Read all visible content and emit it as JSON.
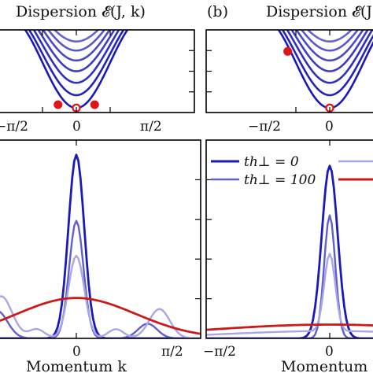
{
  "figure": {
    "panel_a_title": "Dispersion 𝓔(J, k)",
    "panel_b_letter": "(b)",
    "panel_b_title": "Dispersion 𝓔(J",
    "xtick_labels_top_left": [
      "−π/2",
      "0",
      "π/2"
    ],
    "xtick_labels_top_right": [
      "−π/2",
      "0"
    ],
    "xtick_labels_bottom_left": [
      "0",
      "π/2"
    ],
    "xtick_labels_bottom_right": [
      "−π/2",
      "0"
    ],
    "xlabel_left": "Momentum k",
    "xlabel_right": "Momentum k",
    "legend": [
      {
        "label": "th⊥ = 0",
        "color": "#1a1ab8"
      },
      {
        "label": "th⊥ = 100",
        "color": "#5f5fd0"
      },
      {
        "label": "",
        "color": "#a7a7e6"
      },
      {
        "label": "",
        "color": "#cc1a1a"
      }
    ]
  },
  "chart_data": [
    {
      "type": "line",
      "panel": "top-left",
      "title": "Dispersion 𝓔(J, k)",
      "xlabel": "",
      "ylabel": "",
      "xlim": [
        -2.3,
        2.3
      ],
      "ylim": [
        0,
        1
      ],
      "xticks": [
        -1.5708,
        0,
        1.5708
      ],
      "series": [
        {
          "a": 0.55,
          "offset": 0.055,
          "color": "#1a1ab8"
        },
        {
          "a": 0.5,
          "offset": 0.21,
          "color": "#2323bc"
        },
        {
          "a": 0.46,
          "offset": 0.36,
          "color": "#3030c0"
        },
        {
          "a": 0.42,
          "offset": 0.5,
          "color": "#3d3dc4"
        },
        {
          "a": 0.38,
          "offset": 0.63,
          "color": "#4a4ac8"
        },
        {
          "a": 0.34,
          "offset": 0.75,
          "color": "#5858cc"
        },
        {
          "a": 0.3,
          "offset": 0.86,
          "color": "#6565d0"
        }
      ],
      "markers": [
        {
          "x": -0.85,
          "y": 0.095,
          "style": "filled",
          "color": "#e01515"
        },
        {
          "x": 0,
          "y": 0.055,
          "style": "open",
          "color": "#e01515"
        },
        {
          "x": 0.85,
          "y": 0.095,
          "style": "filled",
          "color": "#e01515"
        }
      ]
    },
    {
      "type": "line",
      "panel": "top-right",
      "title": "Dispersion 𝓔(J",
      "xlim": [
        -2.3,
        2.3
      ],
      "ylim": [
        0,
        1
      ],
      "xticks": [
        -1.5708,
        0
      ],
      "series": [
        {
          "a": 0.55,
          "offset": 0.055,
          "color": "#1a1ab8"
        },
        {
          "a": 0.5,
          "offset": 0.21,
          "color": "#2323bc"
        },
        {
          "a": 0.46,
          "offset": 0.36,
          "color": "#3030c0"
        },
        {
          "a": 0.42,
          "offset": 0.5,
          "color": "#3d3dc4"
        },
        {
          "a": 0.38,
          "offset": 0.63,
          "color": "#4a4ac8"
        },
        {
          "a": 0.34,
          "offset": 0.75,
          "color": "#5858cc"
        },
        {
          "a": 0.3,
          "offset": 0.86,
          "color": "#6565d0"
        }
      ],
      "markers": [
        {
          "x": -1.95,
          "y": 0.74,
          "style": "filled",
          "color": "#e01515"
        },
        {
          "x": 0,
          "y": 0.055,
          "style": "open",
          "color": "#e01515"
        }
      ]
    },
    {
      "type": "line",
      "panel": "bottom-left",
      "xlabel": "Momentum k",
      "xlim": [
        -1.6,
        1.6
      ],
      "ylim": [
        0,
        1.08
      ],
      "xticks": [
        0,
        1.5708
      ],
      "series": [
        {
          "name": "th⊥ = 0",
          "color": "#1a1ab8",
          "width": 2.8,
          "components": [
            [
              0,
              0.1,
              1.0
            ]
          ]
        },
        {
          "name": "th⊥ = 100",
          "color": "#5f5fd0",
          "width": 2.4,
          "components": [
            [
              0,
              0.09,
              0.64
            ],
            [
              -1.0,
              0.13,
              0.15
            ],
            [
              0.9,
              0.12,
              0.08
            ]
          ]
        },
        {
          "name": "",
          "color": "#a7a7e6",
          "width": 2.4,
          "components": [
            [
              0,
              0.1,
              0.45
            ],
            [
              -0.95,
              0.14,
              0.23
            ],
            [
              1.05,
              0.13,
              0.16
            ],
            [
              -0.5,
              0.1,
              0.05
            ],
            [
              0.5,
              0.1,
              0.05
            ]
          ]
        },
        {
          "name": "",
          "color": "#cc1a1a",
          "width": 2.8,
          "components": [
            [
              0,
              0.75,
              0.22
            ]
          ]
        }
      ]
    },
    {
      "type": "line",
      "panel": "bottom-right",
      "xlabel": "Momentum k",
      "xlim": [
        -1.6,
        1.6
      ],
      "ylim": [
        0,
        1.08
      ],
      "xticks": [
        -1.5708,
        0
      ],
      "series": [
        {
          "name": "th⊥ = 0",
          "color": "#1a1ab8",
          "width": 2.8,
          "components": [
            [
              0,
              0.1,
              0.94
            ]
          ]
        },
        {
          "name": "th⊥ = 100",
          "color": "#5f5fd0",
          "width": 2.4,
          "components": [
            [
              0,
              0.07,
              0.67
            ]
          ]
        },
        {
          "name": "",
          "color": "#a7a7e6",
          "width": 2.4,
          "components": [
            [
              0,
              0.07,
              0.42
            ],
            [
              0,
              1.3,
              0.04
            ]
          ]
        },
        {
          "name": "",
          "color": "#cc1a1a",
          "width": 2.8,
          "components": [
            [
              0,
              1.6,
              0.075
            ]
          ]
        }
      ]
    }
  ]
}
